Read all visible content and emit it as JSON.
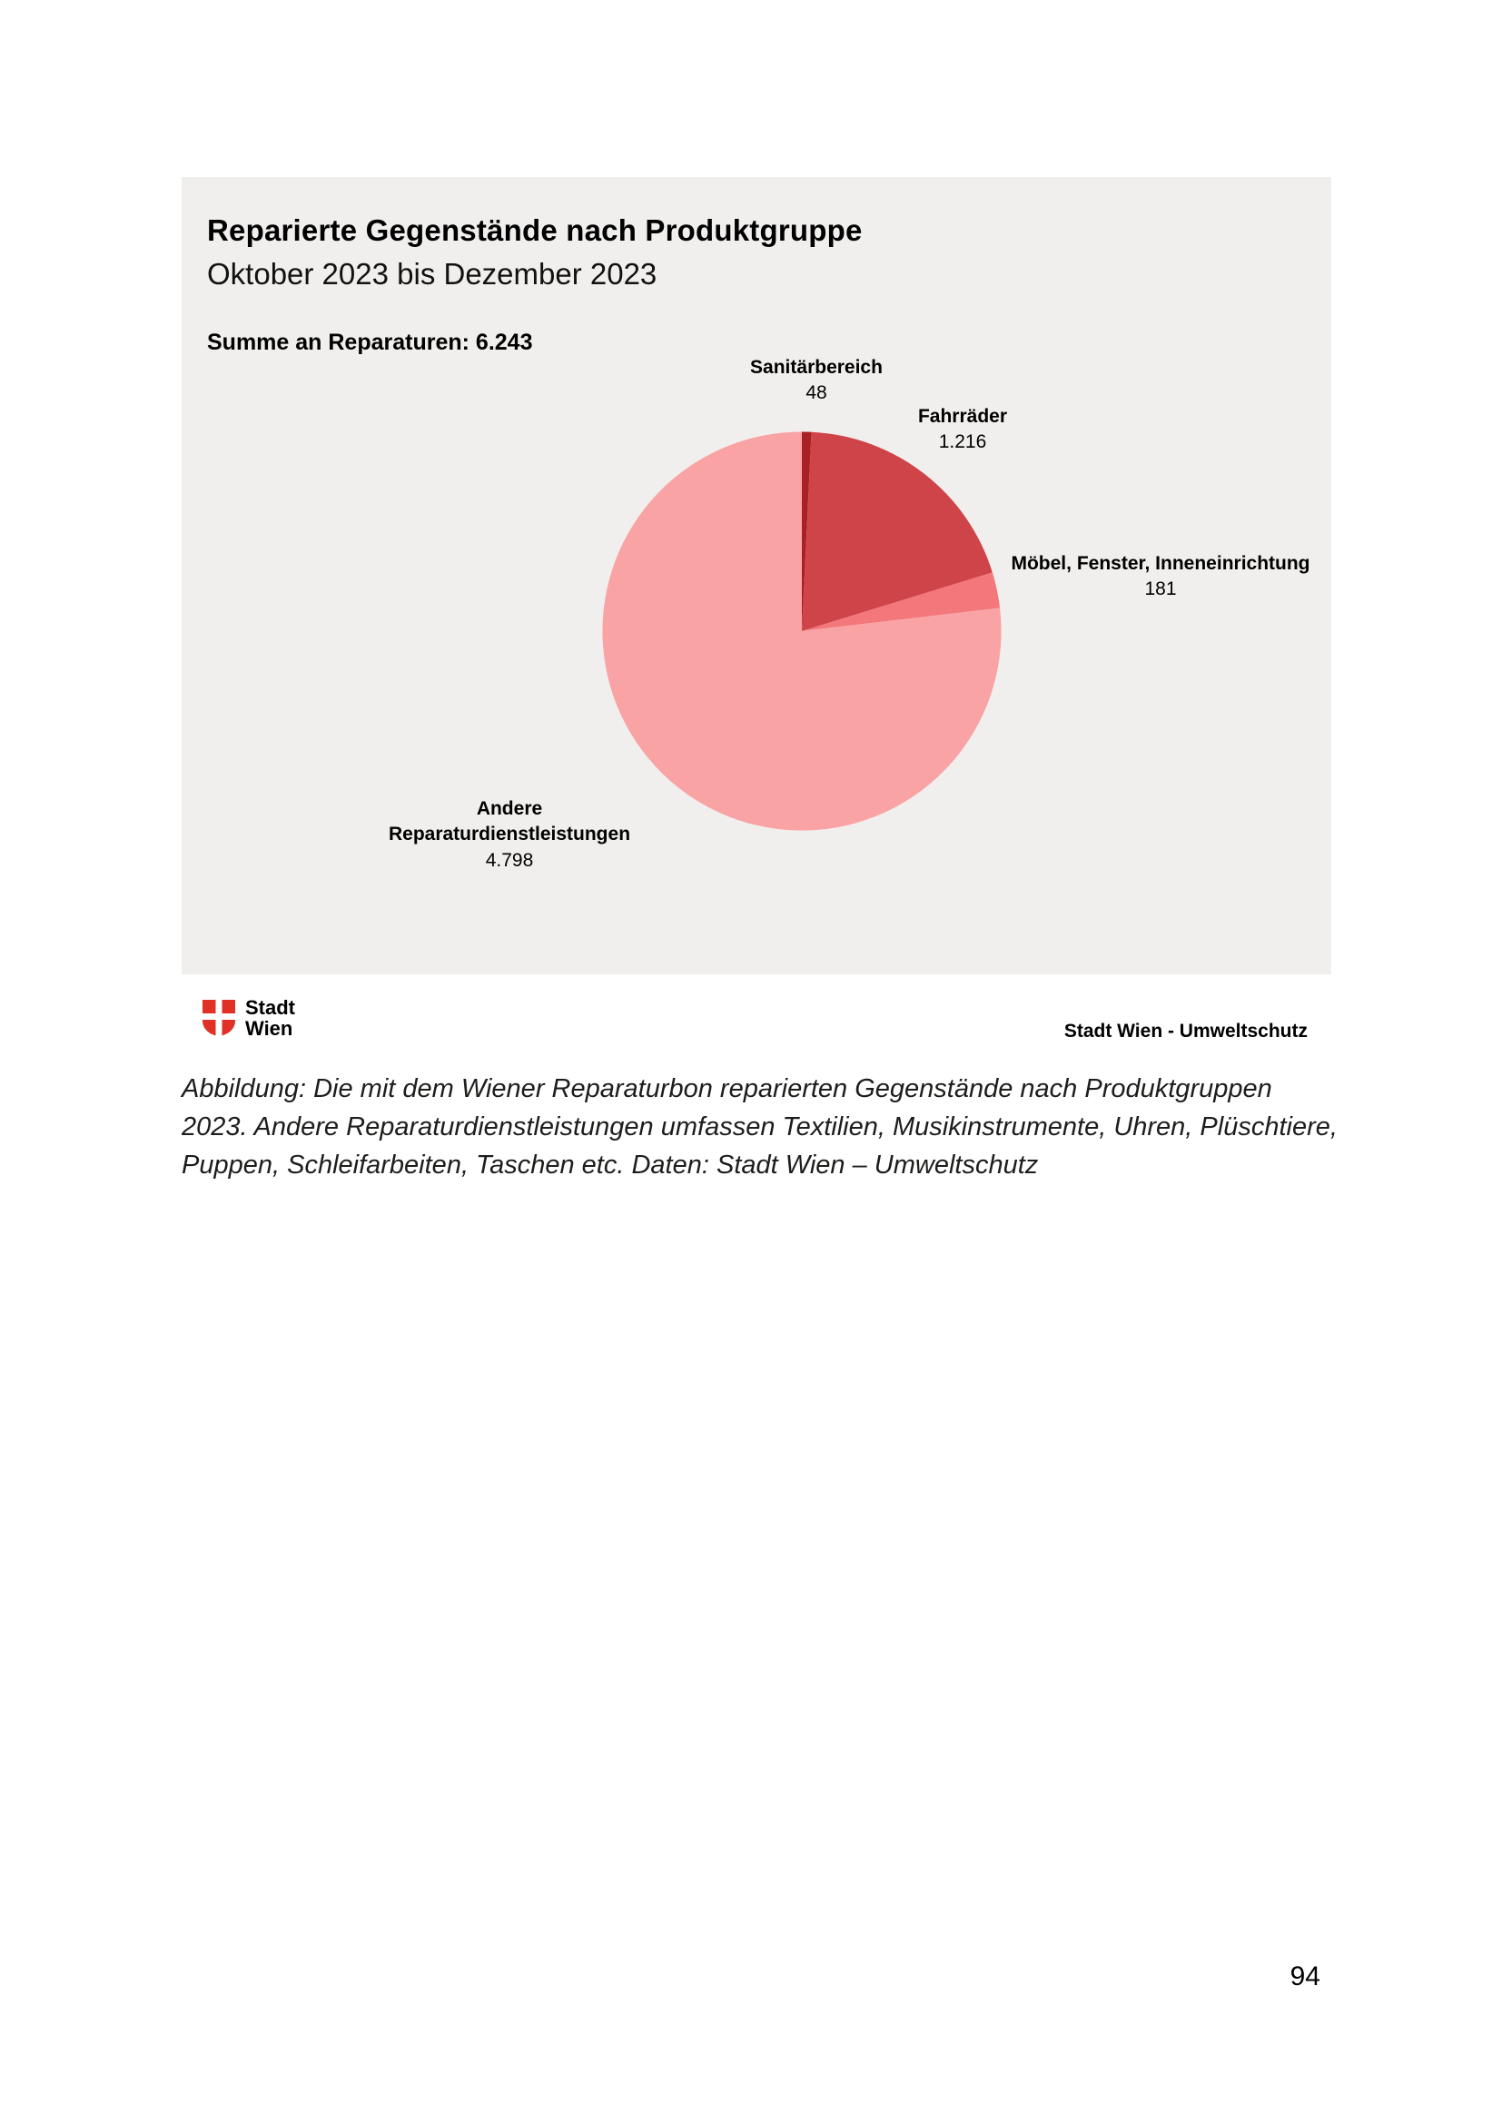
{
  "panel": {
    "title": "Reparierte Gegenstände nach Produktgruppe",
    "subtitle": "Oktober 2023 bis Dezember 2023",
    "total_label": "Summe an Reparaturen: 6.243"
  },
  "chart_data": {
    "type": "pie",
    "title": "Reparierte Gegenstände nach Produktgruppe",
    "subtitle": "Oktober 2023 bis Dezember 2023",
    "total": 6243,
    "labels": [
      "Sanitärbereich",
      "Fahrräder",
      "Möbel, Fenster, Inneneinrichtung",
      "Andere Reparaturdienstleistungen"
    ],
    "values": [
      48,
      1216,
      181,
      4798
    ],
    "display_values": [
      "48",
      "1.216",
      "181",
      "4.798"
    ],
    "colors": [
      "#a92125",
      "#cf4449",
      "#f4777b",
      "#f9a3a5"
    ],
    "start_angle_deg": -90,
    "direction": "clockwise",
    "legend_position": "outside-labels",
    "background": "#f1efed"
  },
  "footer": {
    "logo_line1": "Stadt",
    "logo_line2": "Wien",
    "source_right": "Stadt Wien - Umweltschutz",
    "brand_color": "#e03127"
  },
  "caption": "Abbildung: Die mit dem Wiener Reparaturbon reparierten Gegenstände nach Produktgruppen 2023. Andere Reparaturdienstleistungen umfassen Textilien, Musikinstrumente, Uhren, Plüschtiere, Puppen, Schleifarbeiten, Taschen etc. Daten: Stadt Wien – Umweltschutz",
  "page": {
    "number": "94"
  }
}
